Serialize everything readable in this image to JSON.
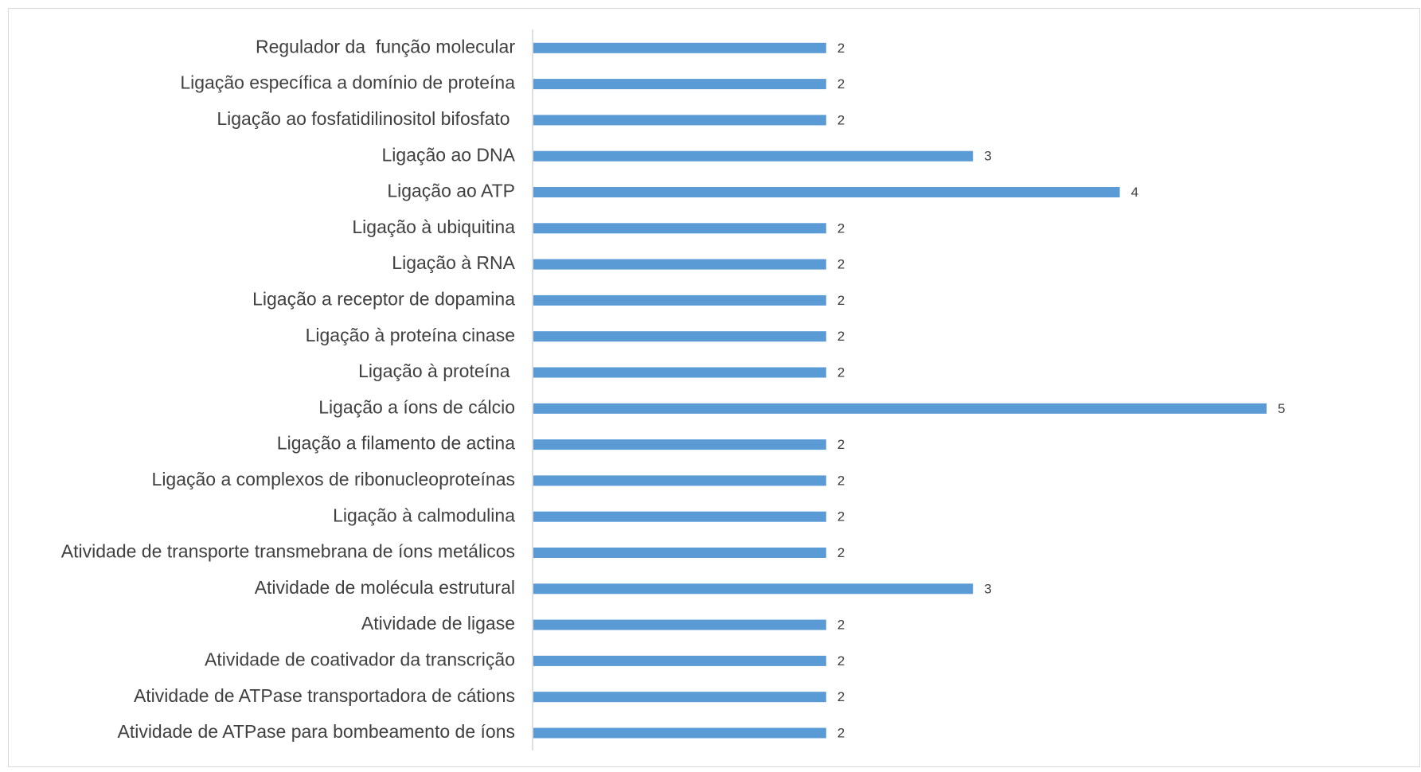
{
  "chart_data": {
    "type": "bar",
    "orientation": "horizontal",
    "color": "#5b9bd5",
    "categories": [
      "Regulador da  função molecular",
      "Ligação específica a domínio de proteína",
      "Ligação ao fosfatidilinositol bifosfato ",
      "Ligação ao DNA",
      "Ligação ao ATP",
      "Ligação à ubiquitina",
      "Ligação à RNA",
      "Ligação a receptor de dopamina",
      "Ligação à proteína cinase",
      "Ligação à proteína ",
      "Ligação a íons de cálcio",
      "Ligação a filamento de actina",
      "Ligação a complexos de ribonucleoproteínas",
      "Ligação à calmodulina",
      "Atividade de transporte transmebrana de íons metálicos",
      "Atividade de molécula estrutural",
      "Atividade de ligase",
      "Atividade de coativador da transcrição",
      "Atividade de ATPase transportadora de cátions",
      "Atividade de ATPase para bombeamento de íons"
    ],
    "values": [
      2,
      2,
      2,
      3,
      4,
      2,
      2,
      2,
      2,
      2,
      5,
      2,
      2,
      2,
      2,
      3,
      2,
      2,
      2,
      2
    ]
  }
}
